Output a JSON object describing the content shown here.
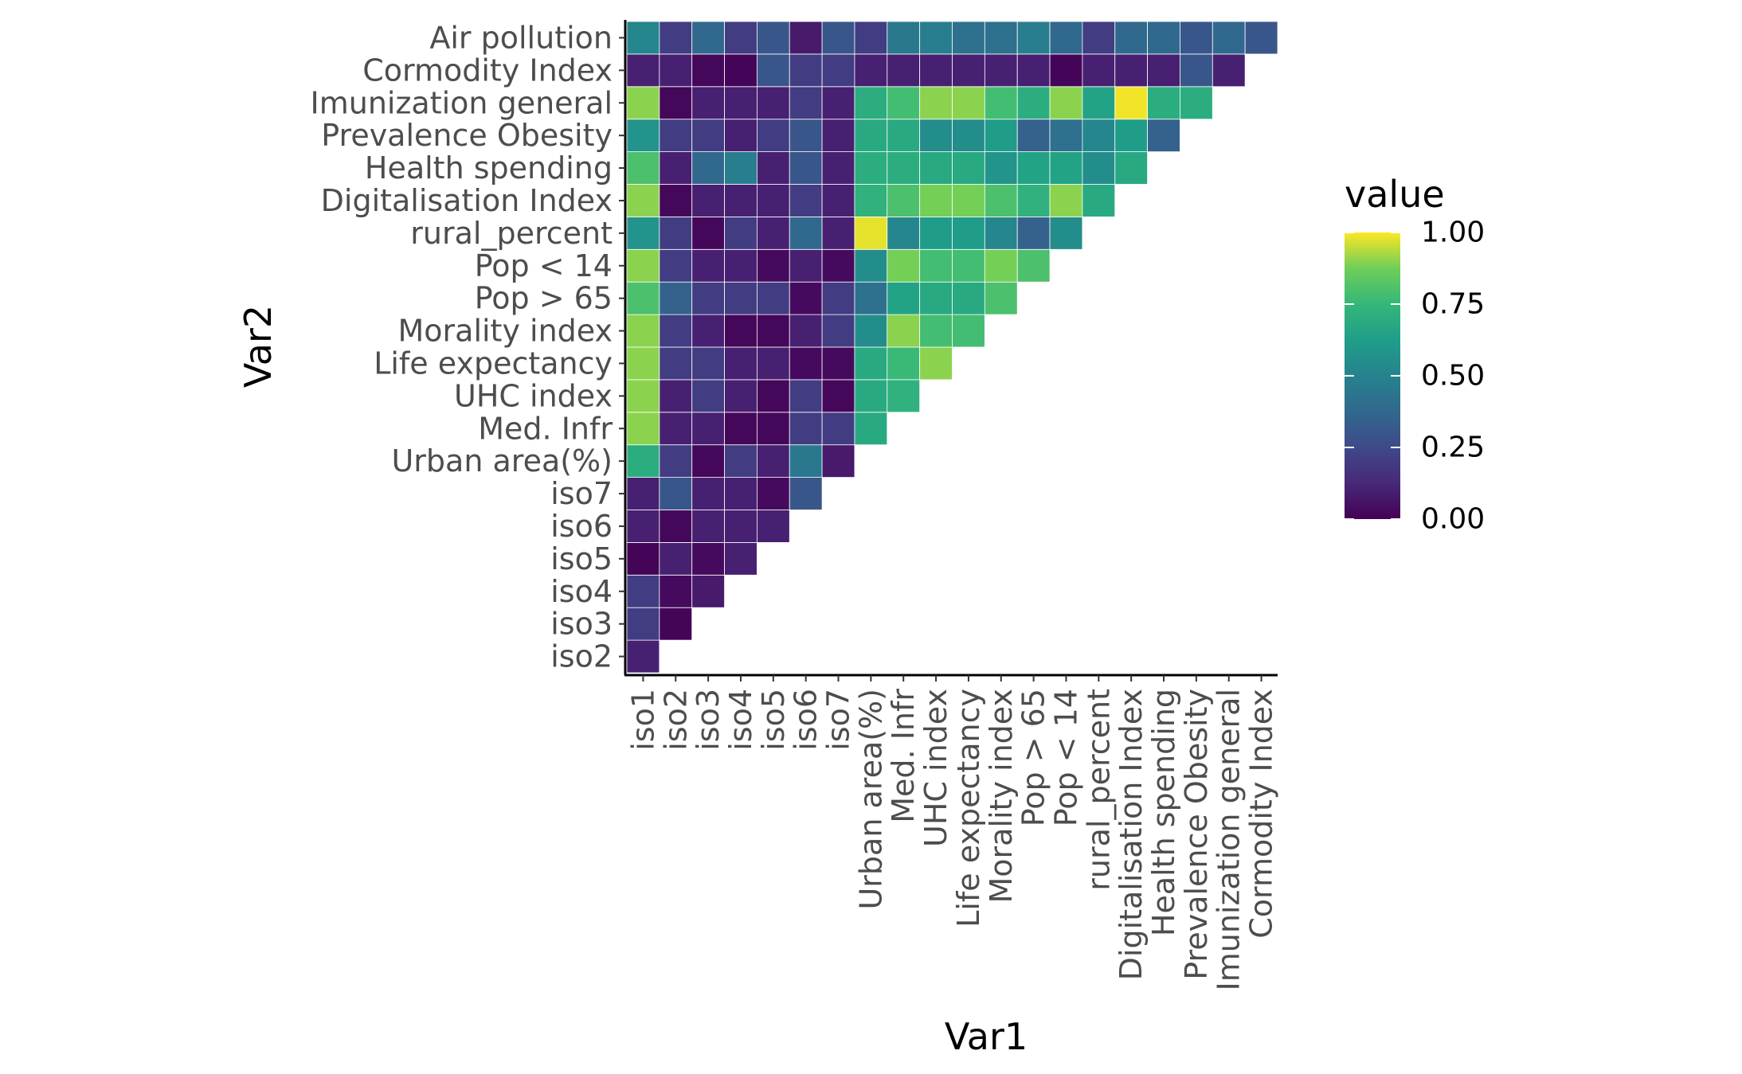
{
  "chart_data": {
    "type": "heatmap",
    "title": "",
    "xlabel": "Var1",
    "ylabel": "Var2",
    "x_categories": [
      "iso1",
      "iso2",
      "iso3",
      "iso4",
      "iso5",
      "iso6",
      "iso7",
      "Urban area(%)",
      "Med. Infr",
      "UHC index",
      "Life expectancy",
      "Morality index",
      "Pop > 65",
      "Pop < 14 ",
      "rural_percent",
      "Digitalisation Index",
      "Health spending",
      "Prevalence Obesity",
      "Imunization general",
      "Cormodity Index"
    ],
    "y_categories": [
      "iso2",
      "iso3",
      "iso4",
      "iso5",
      "iso6",
      "iso7",
      "Urban area(%)",
      "Med. Infr",
      "UHC index",
      "Life expectancy",
      "Morality index",
      "Pop > 65",
      "Pop < 14 ",
      "rural_percent",
      "Digitalisation Index",
      "Health spending",
      "Prevalence Obesity",
      "Imunization general",
      "Cormodity Index",
      "Air pollution"
    ],
    "values": [
      [
        0.1
      ],
      [
        0.2,
        0.01
      ],
      [
        0.2,
        0.03,
        0.08
      ],
      [
        0.01,
        0.1,
        0.03,
        0.1
      ],
      [
        0.1,
        0.02,
        0.1,
        0.1,
        0.1
      ],
      [
        0.1,
        0.3,
        0.1,
        0.1,
        0.03,
        0.3
      ],
      [
        0.7,
        0.2,
        0.02,
        0.2,
        0.1,
        0.45,
        0.08
      ],
      [
        0.9,
        0.1,
        0.1,
        0.02,
        0.02,
        0.2,
        0.2,
        0.68
      ],
      [
        0.9,
        0.1,
        0.2,
        0.1,
        0.02,
        0.2,
        0.02,
        0.68,
        0.72
      ],
      [
        0.9,
        0.2,
        0.2,
        0.1,
        0.1,
        0.03,
        0.03,
        0.68,
        0.76,
        0.9
      ],
      [
        0.9,
        0.2,
        0.1,
        0.02,
        0.02,
        0.1,
        0.2,
        0.55,
        0.9,
        0.78,
        0.78
      ],
      [
        0.8,
        0.35,
        0.2,
        0.2,
        0.2,
        0.03,
        0.2,
        0.42,
        0.65,
        0.68,
        0.68,
        0.8
      ],
      [
        0.9,
        0.2,
        0.1,
        0.1,
        0.03,
        0.1,
        0.03,
        0.55,
        0.88,
        0.78,
        0.78,
        0.88,
        0.8
      ],
      [
        0.58,
        0.2,
        0.02,
        0.2,
        0.1,
        0.38,
        0.1,
        0.98,
        0.52,
        0.62,
        0.62,
        0.52,
        0.35,
        0.55
      ],
      [
        0.9,
        0.02,
        0.1,
        0.1,
        0.1,
        0.2,
        0.1,
        0.72,
        0.8,
        0.88,
        0.88,
        0.8,
        0.72,
        0.9,
        0.68
      ],
      [
        0.8,
        0.1,
        0.38,
        0.48,
        0.1,
        0.3,
        0.1,
        0.7,
        0.7,
        0.68,
        0.68,
        0.58,
        0.65,
        0.65,
        0.55,
        0.68
      ],
      [
        0.58,
        0.2,
        0.2,
        0.1,
        0.2,
        0.3,
        0.1,
        0.68,
        0.68,
        0.55,
        0.55,
        0.62,
        0.35,
        0.42,
        0.52,
        0.62,
        0.35
      ],
      [
        0.9,
        0.02,
        0.1,
        0.1,
        0.1,
        0.2,
        0.1,
        0.7,
        0.78,
        0.9,
        0.9,
        0.78,
        0.7,
        0.9,
        0.65,
        0.99,
        0.7,
        0.7
      ],
      [
        0.1,
        0.1,
        0.02,
        0.01,
        0.3,
        0.2,
        0.2,
        0.1,
        0.1,
        0.1,
        0.1,
        0.1,
        0.1,
        0.01,
        0.1,
        0.1,
        0.1,
        0.3,
        0.1
      ],
      [
        0.52,
        0.2,
        0.38,
        0.2,
        0.3,
        0.08,
        0.3,
        0.2,
        0.45,
        0.48,
        0.42,
        0.42,
        0.48,
        0.38,
        0.2,
        0.38,
        0.38,
        0.3,
        0.38,
        0.3
      ]
    ],
    "color_scale": "viridis",
    "legend": {
      "title": "value",
      "ticks": [
        "0.00",
        "0.25",
        "0.50",
        "0.75",
        "1.00"
      ],
      "tick_values": [
        0,
        0.25,
        0.5,
        0.75,
        1
      ],
      "range": [
        0,
        1
      ],
      "placement": "right"
    },
    "grid": false
  }
}
